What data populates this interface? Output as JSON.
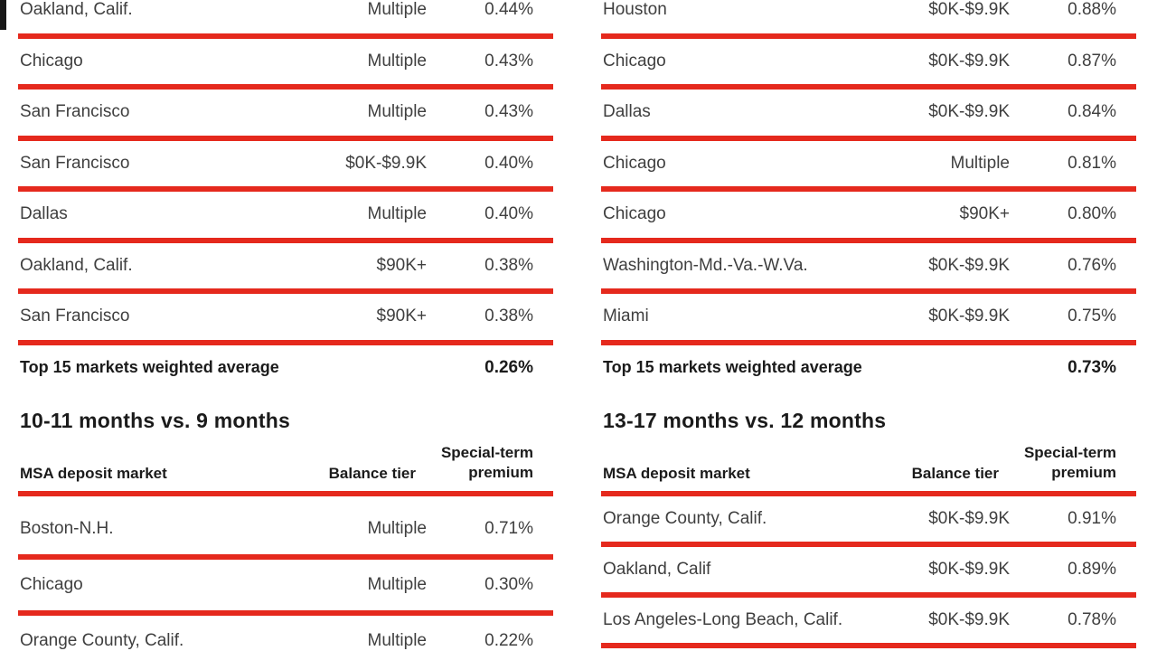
{
  "page": {
    "background": "#ffffff",
    "accent_color": "#e5291d",
    "row_text_color": "#3f3f3f",
    "bold_text_color": "#1b1b1b"
  },
  "labels": {
    "total_label": "Top 15 markets weighted average",
    "col_market": "MSA deposit market",
    "col_tier": "Balance tier",
    "col_premium_line1": "Special-term",
    "col_premium_line2": "premium"
  },
  "tables": {
    "top_left": {
      "rows": [
        {
          "market": "Oakland, Calif.",
          "tier": "Multiple",
          "premium": "0.44%"
        },
        {
          "market": "Chicago",
          "tier": "Multiple",
          "premium": "0.43%"
        },
        {
          "market": "San Francisco",
          "tier": "Multiple",
          "premium": "0.43%"
        },
        {
          "market": "San Francisco",
          "tier": "$0K-$9.9K",
          "premium": "0.40%"
        },
        {
          "market": "Dallas",
          "tier": "Multiple",
          "premium": "0.40%"
        },
        {
          "market": "Oakland, Calif.",
          "tier": "$90K+",
          "premium": "0.38%"
        },
        {
          "market": "San Francisco",
          "tier": "$90K+",
          "premium": "0.38%"
        }
      ],
      "total_value": "0.26%"
    },
    "top_right": {
      "rows": [
        {
          "market": "Houston",
          "tier": "$0K-$9.9K",
          "premium": "0.88%"
        },
        {
          "market": "Chicago",
          "tier": "$0K-$9.9K",
          "premium": "0.87%"
        },
        {
          "market": "Dallas",
          "tier": "$0K-$9.9K",
          "premium": "0.84%"
        },
        {
          "market": "Chicago",
          "tier": "Multiple",
          "premium": "0.81%"
        },
        {
          "market": "Chicago",
          "tier": "$90K+",
          "premium": "0.80%"
        },
        {
          "market": "Washington-Md.-Va.-W.Va.",
          "tier": "$0K-$9.9K",
          "premium": "0.76%"
        },
        {
          "market": "Miami",
          "tier": "$0K-$9.9K",
          "premium": "0.75%"
        }
      ],
      "total_value": "0.73%"
    },
    "bottom_left": {
      "heading": "10-11 months vs. 9 months",
      "rows": [
        {
          "market": "Boston-N.H.",
          "tier": "Multiple",
          "premium": "0.71%"
        },
        {
          "market": "Chicago",
          "tier": "Multiple",
          "premium": "0.30%"
        },
        {
          "market": "Orange County, Calif.",
          "tier": "Multiple",
          "premium": "0.22%"
        }
      ]
    },
    "bottom_right": {
      "heading": "13-17 months vs. 12 months",
      "rows": [
        {
          "market": "Orange County, Calif.",
          "tier": "$0K-$9.9K",
          "premium": "0.91%"
        },
        {
          "market": "Oakland, Calif",
          "tier": "$0K-$9.9K",
          "premium": "0.89%"
        },
        {
          "market": "Los Angeles-Long Beach, Calif.",
          "tier": "$0K-$9.9K",
          "premium": "0.78%"
        }
      ]
    }
  }
}
